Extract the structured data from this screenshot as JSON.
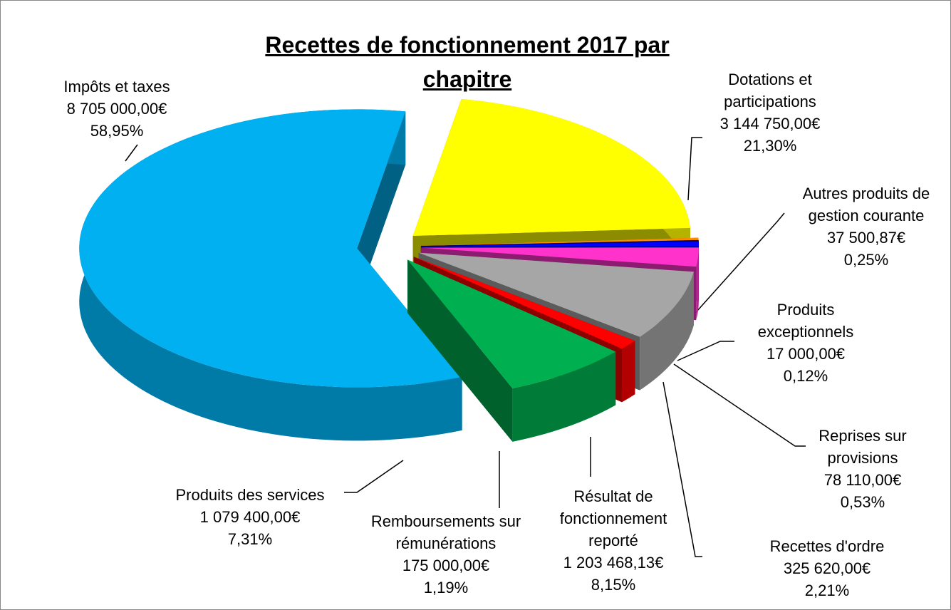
{
  "chart_data": {
    "type": "pie",
    "title": "Recettes de fonctionnement 2017 par chapitre",
    "categories": [
      "Impôts et taxes",
      "Dotations et participations",
      "Autres produits de gestion courante",
      "Produits exceptionnels",
      "Reprises sur provisions",
      "Recettes d'ordre",
      "Résultat de fonctionnement reporté",
      "Remboursements sur rémunérations",
      "Produits des services"
    ],
    "values": [
      8705000,
      3144750,
      37500.87,
      17000,
      78110,
      325620,
      1203468.13,
      175000,
      1079400
    ],
    "value_labels": [
      "8 705 000,00€",
      "3 144 750,00€",
      "37 500,87€",
      "17 000,00€",
      "78 110,00€",
      "325 620,00€",
      "1 203 468,13€",
      "175 000,00€",
      "1 079 400,00€"
    ],
    "percentages": [
      58.95,
      21.3,
      0.25,
      0.12,
      0.53,
      2.21,
      8.15,
      1.19,
      7.31
    ],
    "percentage_labels": [
      "58,95%",
      "21,30%",
      "0,25%",
      "0,12%",
      "0,53%",
      "2,21%",
      "8,15%",
      "1,19%",
      "7,31%"
    ],
    "colors": [
      "#00b0f0",
      "#ffff00",
      "#ff8c00",
      "#00008b",
      "#0000ff",
      "#ff33cc",
      "#a6a6a6",
      "#ff0000",
      "#00b050"
    ]
  }
}
